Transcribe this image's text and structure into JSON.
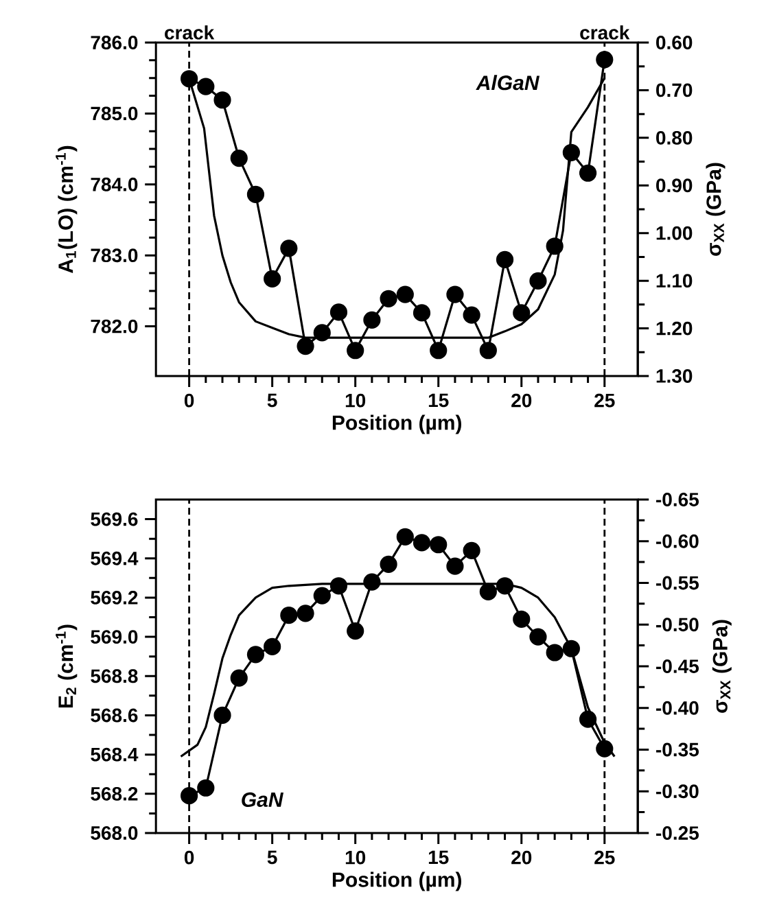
{
  "chart_data": [
    {
      "type": "line",
      "xlabel": "Position (µm)",
      "ylabel": "A$_{1}$(LO) (cm$^{-1}$)",
      "y2label": "σ$_{XX}$ (GPa)",
      "annotations": [
        "AlGaN"
      ],
      "x": [
        0,
        1,
        2,
        3,
        4,
        5,
        6,
        7,
        8,
        9,
        10,
        11,
        12,
        13,
        14,
        15,
        16,
        17,
        18,
        19,
        20,
        21,
        22,
        23,
        24,
        25
      ],
      "series": [
        {
          "color": "#000000",
          "marker": "circle",
          "values": [
            785.49,
            785.38,
            785.19,
            784.37,
            783.86,
            782.67,
            783.1,
            781.72,
            781.91,
            782.2,
            781.66,
            782.09,
            782.39,
            782.45,
            782.19,
            781.66,
            782.45,
            782.16,
            781.66,
            782.94,
            782.19,
            782.64,
            783.13,
            784.45,
            784.16,
            785.76
          ]
        },
        {
          "color": "#000000",
          "marker": "none",
          "x": [
            0,
            0.9,
            1.5,
            2,
            2.5,
            3,
            4,
            5,
            6,
            7,
            18,
            19,
            20,
            21,
            22,
            22.5,
            23,
            24,
            25
          ],
          "values": [
            785.49,
            784.79,
            783.56,
            783.0,
            782.62,
            782.34,
            782.07,
            781.98,
            781.89,
            781.84,
            781.84,
            781.93,
            782.03,
            782.24,
            782.73,
            783.35,
            784.74,
            785.09,
            785.5
          ]
        }
      ],
      "xlim": [
        -2,
        27
      ],
      "xticks": [
        0,
        5,
        10,
        15,
        20,
        25
      ],
      "ylim": [
        781.3,
        786.0
      ],
      "yticks": [
        {
          "value": 782,
          "label": "782.0"
        },
        {
          "value": 783,
          "label": "783.0"
        },
        {
          "value": 784,
          "label": "784.0"
        },
        {
          "value": 785,
          "label": "785.0"
        },
        {
          "value": 786,
          "label": "786.0"
        }
      ],
      "y2lim": [
        1.3,
        0.6
      ],
      "y2ticks": [
        {
          "value": 0.6,
          "label": "0.60"
        },
        {
          "value": 0.7,
          "label": "0.70"
        },
        {
          "value": 0.8,
          "label": "0.80"
        },
        {
          "value": 0.9,
          "label": "0.90"
        },
        {
          "value": 1.0,
          "label": "1.00"
        },
        {
          "value": 1.1,
          "label": "1.10"
        },
        {
          "value": 1.2,
          "label": "1.20"
        },
        {
          "value": 1.3,
          "label": "1.30"
        }
      ],
      "ref_lines": [
        {
          "axis": "x",
          "value": 0,
          "label": "crack",
          "line_style": "dashed"
        },
        {
          "axis": "x",
          "value": 25,
          "label": "crack",
          "line_style": "dashed"
        }
      ],
      "grid": false
    },
    {
      "type": "line",
      "xlabel": "Position (µm)",
      "ylabel": "E$_{2}$ (cm$^{-1}$)",
      "y2label": "σ$_{XX}$ (GPa)",
      "annotations": [
        "GaN"
      ],
      "x": [
        0,
        1,
        2,
        3,
        4,
        5,
        6,
        7,
        8,
        9,
        10,
        11,
        12,
        13,
        14,
        15,
        16,
        17,
        18,
        19,
        20,
        21,
        22,
        23,
        24,
        25
      ],
      "series": [
        {
          "color": "#000000",
          "marker": "circle",
          "values": [
            568.19,
            568.23,
            568.6,
            568.79,
            568.91,
            568.95,
            569.11,
            569.12,
            569.21,
            569.26,
            569.03,
            569.28,
            569.37,
            569.51,
            569.48,
            569.47,
            569.36,
            569.44,
            569.23,
            569.26,
            569.09,
            569.0,
            568.92,
            568.94,
            568.58,
            568.43
          ]
        },
        {
          "color": "#000000",
          "marker": "none",
          "x": [
            -0.5,
            0.5,
            1,
            1.5,
            2,
            2.5,
            3,
            4,
            5,
            6,
            8,
            19,
            20,
            21,
            22,
            23,
            24,
            25,
            25.6
          ],
          "values": [
            568.39,
            568.45,
            568.54,
            568.71,
            568.89,
            569.01,
            569.11,
            569.2,
            569.25,
            569.26,
            569.27,
            569.27,
            569.25,
            569.2,
            569.1,
            568.94,
            568.64,
            568.46,
            568.39
          ]
        }
      ],
      "xlim": [
        -2,
        27
      ],
      "xticks": [
        0,
        5,
        10,
        15,
        20,
        25
      ],
      "ylim": [
        568.0,
        569.7
      ],
      "yticks": [
        {
          "value": 568.0,
          "label": "568.0"
        },
        {
          "value": 568.2,
          "label": "568.2"
        },
        {
          "value": 568.4,
          "label": "568.4"
        },
        {
          "value": 568.6,
          "label": "568.6"
        },
        {
          "value": 568.8,
          "label": "568.8"
        },
        {
          "value": 569.0,
          "label": "569.0"
        },
        {
          "value": 569.2,
          "label": "569.2"
        },
        {
          "value": 569.4,
          "label": "569.4"
        },
        {
          "value": 569.6,
          "label": "569.6"
        }
      ],
      "y2lim": [
        -0.25,
        -0.65
      ],
      "y2ticks": [
        {
          "value": -0.25,
          "label": "-0.25"
        },
        {
          "value": -0.3,
          "label": "-0.30"
        },
        {
          "value": -0.35,
          "label": "-0.35"
        },
        {
          "value": -0.4,
          "label": "-0.40"
        },
        {
          "value": -0.45,
          "label": "-0.45"
        },
        {
          "value": -0.5,
          "label": "-0.50"
        },
        {
          "value": -0.55,
          "label": "-0.55"
        },
        {
          "value": -0.6,
          "label": "-0.60"
        },
        {
          "value": -0.65,
          "label": "-0.65"
        }
      ],
      "ref_lines": [
        {
          "axis": "x",
          "value": 0,
          "line_style": "dashed"
        },
        {
          "axis": "x",
          "value": 25,
          "line_style": "dashed"
        }
      ],
      "grid": false
    }
  ]
}
